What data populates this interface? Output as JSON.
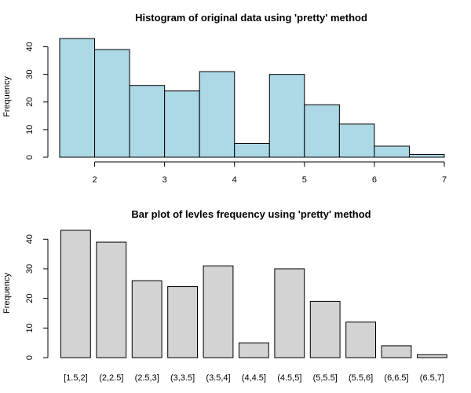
{
  "chart_data": [
    {
      "type": "bar",
      "subtype": "histogram",
      "title": "Histogram of original data using 'pretty' method",
      "xlabel": "",
      "ylabel": "Frequency",
      "bins": [
        [
          1.5,
          2
        ],
        [
          2,
          2.5
        ],
        [
          2.5,
          3
        ],
        [
          3,
          3.5
        ],
        [
          3.5,
          4
        ],
        [
          4,
          4.5
        ],
        [
          4.5,
          5
        ],
        [
          5,
          5.5
        ],
        [
          5.5,
          6
        ],
        [
          6,
          6.5
        ],
        [
          6.5,
          7
        ]
      ],
      "values": [
        43,
        39,
        26,
        24,
        31,
        5,
        30,
        19,
        12,
        4,
        1
      ],
      "xlim": [
        1.5,
        7
      ],
      "ylim": [
        0,
        43
      ],
      "x_ticks": [
        2,
        3,
        4,
        5,
        6,
        7
      ],
      "y_ticks": [
        0,
        10,
        20,
        30,
        40
      ],
      "bar_color": "#ADD8E6",
      "grid": false
    },
    {
      "type": "bar",
      "title": "Bar plot of levles frequency using 'pretty' method",
      "xlabel": "",
      "ylabel": "Frequency",
      "categories": [
        "[1.5,2]",
        "(2,2.5]",
        "(2.5,3]",
        "(3,3.5]",
        "(3.5,4]",
        "(4,4.5]",
        "(4.5,5]",
        "(5,5.5]",
        "(5.5,6]",
        "(6,6.5]",
        "(6.5,7]"
      ],
      "values": [
        43,
        39,
        26,
        24,
        31,
        5,
        30,
        19,
        12,
        4,
        1
      ],
      "ylim": [
        0,
        43
      ],
      "y_ticks": [
        0,
        10,
        20,
        30,
        40
      ],
      "bar_color": "#D3D3D3",
      "grid": false
    }
  ]
}
